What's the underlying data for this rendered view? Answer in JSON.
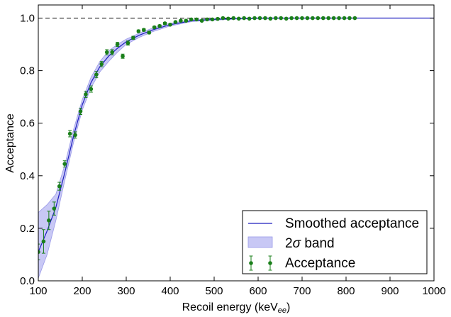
{
  "chart_data": {
    "type": "line",
    "xlabel": "Recoil energy (keV",
    "xlabel_sub": "ee",
    "xlabel_close": ")",
    "ylabel": "Acceptance",
    "xlim": [
      100,
      1000
    ],
    "ylim": [
      0.0,
      1.05
    ],
    "xticks": [
      100,
      200,
      300,
      400,
      500,
      600,
      700,
      800,
      900,
      1000
    ],
    "yticks": [
      0.0,
      0.2,
      0.4,
      0.6,
      0.8,
      1.0
    ],
    "ytick_labels": [
      "0.0",
      "0.2",
      "0.4",
      "0.6",
      "0.8",
      "1.0"
    ],
    "grid": false,
    "legend_position": "lower-right",
    "reference_line": {
      "y": 1.0,
      "style": "dashed",
      "color": "#000000"
    },
    "colors": {
      "smoothed": "#1f1fbf",
      "band": "#c8c8f5",
      "band_edge": "#9a9ae8",
      "points": "#1a7f1a"
    },
    "series": [
      {
        "name": "Smoothed acceptance",
        "kind": "line",
        "x": [
          100,
          120,
          140,
          160,
          180,
          200,
          220,
          240,
          260,
          280,
          300,
          330,
          360,
          400,
          450,
          500,
          550,
          600,
          700,
          800,
          900,
          1000
        ],
        "y": [
          0.11,
          0.19,
          0.28,
          0.41,
          0.55,
          0.67,
          0.755,
          0.815,
          0.855,
          0.885,
          0.91,
          0.935,
          0.955,
          0.975,
          0.99,
          0.995,
          0.998,
          1.0,
          1.0,
          1.0,
          1.0,
          1.0
        ]
      },
      {
        "name": "2σ band",
        "label_prefix": "2",
        "label_symbol": "σ",
        "label_suffix": " band",
        "kind": "band",
        "x": [
          100,
          120,
          140,
          160,
          180,
          200,
          220,
          240,
          260,
          280,
          300,
          330,
          360,
          400,
          450,
          500,
          550,
          600,
          700,
          800,
          900,
          1000
        ],
        "upper": [
          0.26,
          0.29,
          0.33,
          0.44,
          0.575,
          0.69,
          0.775,
          0.835,
          0.875,
          0.9,
          0.92,
          0.943,
          0.962,
          0.98,
          0.993,
          0.998,
          1.0,
          1.0,
          1.0,
          1.0,
          1.0,
          1.0
        ],
        "lower": [
          0.01,
          0.1,
          0.23,
          0.38,
          0.525,
          0.65,
          0.735,
          0.795,
          0.835,
          0.87,
          0.9,
          0.927,
          0.948,
          0.97,
          0.987,
          0.992,
          0.996,
          0.998,
          0.999,
          1.0,
          1.0,
          1.0
        ]
      },
      {
        "name": "Acceptance",
        "kind": "points",
        "x": [
          100,
          112,
          124,
          136,
          148,
          160,
          172,
          184,
          196,
          208,
          220,
          232,
          244,
          256,
          268,
          280,
          292,
          304,
          316,
          328,
          340,
          352,
          364,
          376,
          388,
          400,
          412,
          424,
          436,
          448,
          460,
          472,
          484,
          496,
          508,
          520,
          532,
          544,
          556,
          568,
          580,
          592,
          604,
          616,
          628,
          640,
          652,
          664,
          676,
          688,
          700,
          712,
          724,
          736,
          748,
          760,
          772,
          784,
          796,
          808,
          820
        ],
        "y": [
          0.11,
          0.15,
          0.23,
          0.275,
          0.36,
          0.445,
          0.56,
          0.555,
          0.645,
          0.71,
          0.73,
          0.785,
          0.825,
          0.87,
          0.87,
          0.9,
          0.855,
          0.905,
          0.925,
          0.95,
          0.955,
          0.945,
          0.965,
          0.97,
          0.98,
          0.975,
          0.985,
          0.99,
          0.99,
          0.995,
          0.995,
          0.99,
          0.995,
          0.995,
          0.997,
          1.0,
          0.998,
          1.0,
          0.998,
          1.0,
          0.998,
          1.0,
          1.0,
          1.0,
          0.998,
          1.0,
          1.0,
          0.998,
          1.0,
          1.0,
          1.0,
          1.0,
          1.0,
          1.0,
          1.0,
          1.0,
          1.0,
          1.0,
          1.0,
          1.0,
          1.0
        ],
        "err": [
          0.03,
          0.045,
          0.035,
          0.025,
          0.015,
          0.012,
          0.012,
          0.012,
          0.012,
          0.012,
          0.012,
          0.012,
          0.01,
          0.01,
          0.01,
          0.008,
          0.008,
          0.008,
          0.006,
          0.005,
          0.005,
          0.005,
          0.004,
          0.004,
          0.004,
          0.004,
          0.003,
          0.003,
          0.003,
          0.002,
          0.002,
          0.002,
          0.002,
          0.002,
          0.002,
          0.001,
          0.001,
          0.001,
          0.001,
          0.001,
          0.001,
          0.001,
          0.001,
          0.001,
          0.001,
          0.001,
          0.001,
          0.001,
          0.001,
          0.001,
          0.001,
          0.001,
          0.001,
          0.001,
          0.001,
          0.001,
          0.001,
          0.001,
          0.001,
          0.001,
          0.001
        ]
      }
    ]
  }
}
